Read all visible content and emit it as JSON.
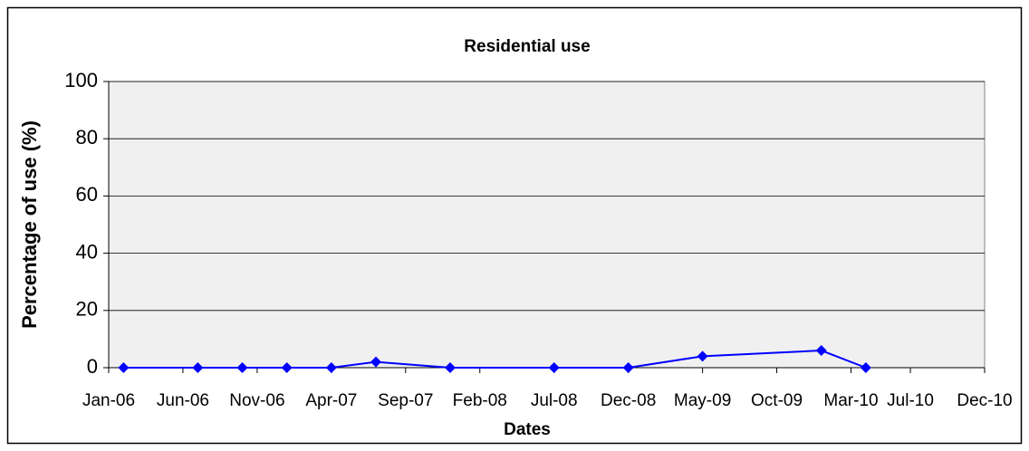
{
  "chart_data": {
    "type": "line",
    "title": "Residential use",
    "x_label": "Dates",
    "y_label": "Percentage of use (%)",
    "x": [
      "Feb-06",
      "Jul-06",
      "Oct-06",
      "Jan-07",
      "Apr-07",
      "Jul-07",
      "Dec-07",
      "Jul-08",
      "Dec-08",
      "May-09",
      "Jan-10",
      "Apr-10"
    ],
    "series": [
      {
        "name": "Residential use",
        "color": "#0000ff",
        "values": [
          0,
          0,
          0,
          0,
          0,
          2,
          0,
          0,
          0,
          4,
          6,
          0
        ]
      }
    ],
    "xlim": [
      "Jan-06",
      "Dec-10"
    ],
    "xticks": [
      "Jan-06",
      "Jun-06",
      "Nov-06",
      "Apr-07",
      "Sep-07",
      "Feb-08",
      "Jul-08",
      "Dec-08",
      "May-09",
      "Oct-09",
      "Mar-10",
      "Jul-10",
      "Dec-10"
    ],
    "ylim": [
      0,
      100
    ],
    "yticks": [
      0,
      20,
      40,
      60,
      80,
      100
    ],
    "grid": true
  }
}
